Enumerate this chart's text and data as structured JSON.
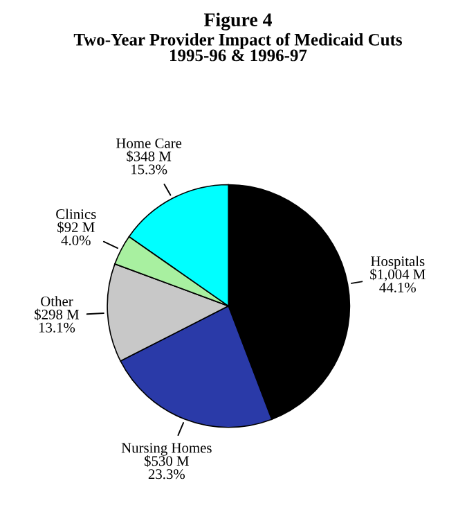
{
  "chart_data": {
    "type": "pie",
    "title": "Figure 4",
    "subtitle": "Two-Year Provider Impact of Medicaid Cuts\n1995-96 & 1996-97",
    "categories": [
      "Hospitals",
      "Nursing Homes",
      "Other",
      "Clinics",
      "Home Care"
    ],
    "values": [
      1004,
      530,
      298,
      92,
      348
    ],
    "value_labels": [
      "$1,004 M\n44.1%",
      "$530 M\n23.3%",
      "$298 M\n13.1%",
      "$92 M\n4.0%",
      "$348 M\n15.3%"
    ],
    "colors": [
      "#000000",
      "#2a3aa8",
      "#c8c8c8",
      "#a8f0a0",
      "#00ffff"
    ]
  }
}
